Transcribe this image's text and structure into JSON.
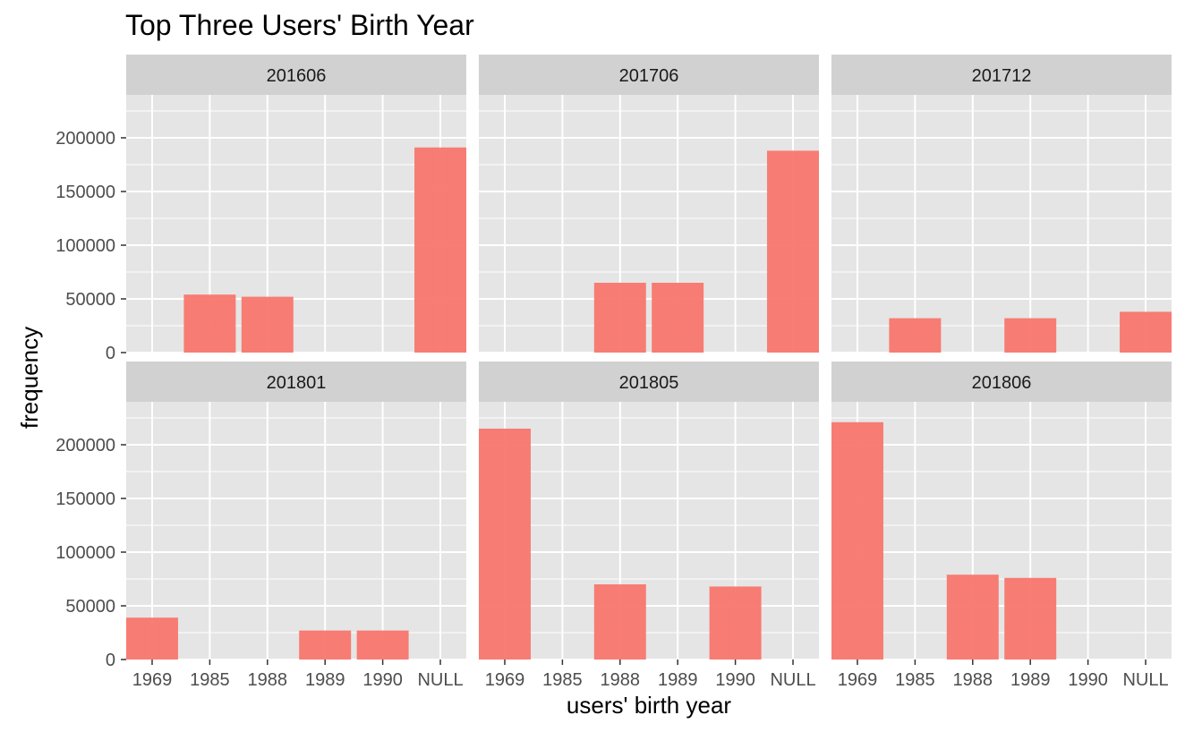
{
  "chart_data": {
    "type": "bar",
    "title": "Top Three Users' Birth Year",
    "xlabel": "users' birth year",
    "ylabel": "frequency",
    "ylim": [
      0,
      240000
    ],
    "yticks": [
      0,
      50000,
      100000,
      150000,
      200000
    ],
    "ytick_labels": [
      "0",
      "50000",
      "100000",
      "150000",
      "200000"
    ],
    "categories": [
      "1969",
      "1985",
      "1988",
      "1989",
      "1990",
      "NULL"
    ],
    "grid": true,
    "legend": "none",
    "bar_color": "#f8766d",
    "panel_background": "#e5e5e5",
    "strip_background": "#d1d1d1",
    "grid_color": "#ffffff",
    "facets": [
      {
        "label": "201606",
        "values": [
          null,
          54000,
          52000,
          null,
          null,
          191000
        ]
      },
      {
        "label": "201706",
        "values": [
          null,
          null,
          65000,
          65000,
          null,
          188000
        ]
      },
      {
        "label": "201712",
        "values": [
          null,
          32000,
          null,
          32000,
          null,
          38000
        ]
      },
      {
        "label": "201801",
        "values": [
          39000,
          null,
          null,
          27000,
          27000,
          null
        ]
      },
      {
        "label": "201805",
        "values": [
          215000,
          null,
          70000,
          null,
          68000,
          null
        ]
      },
      {
        "label": "201806",
        "values": [
          221000,
          null,
          79000,
          76000,
          null,
          null
        ]
      }
    ]
  }
}
